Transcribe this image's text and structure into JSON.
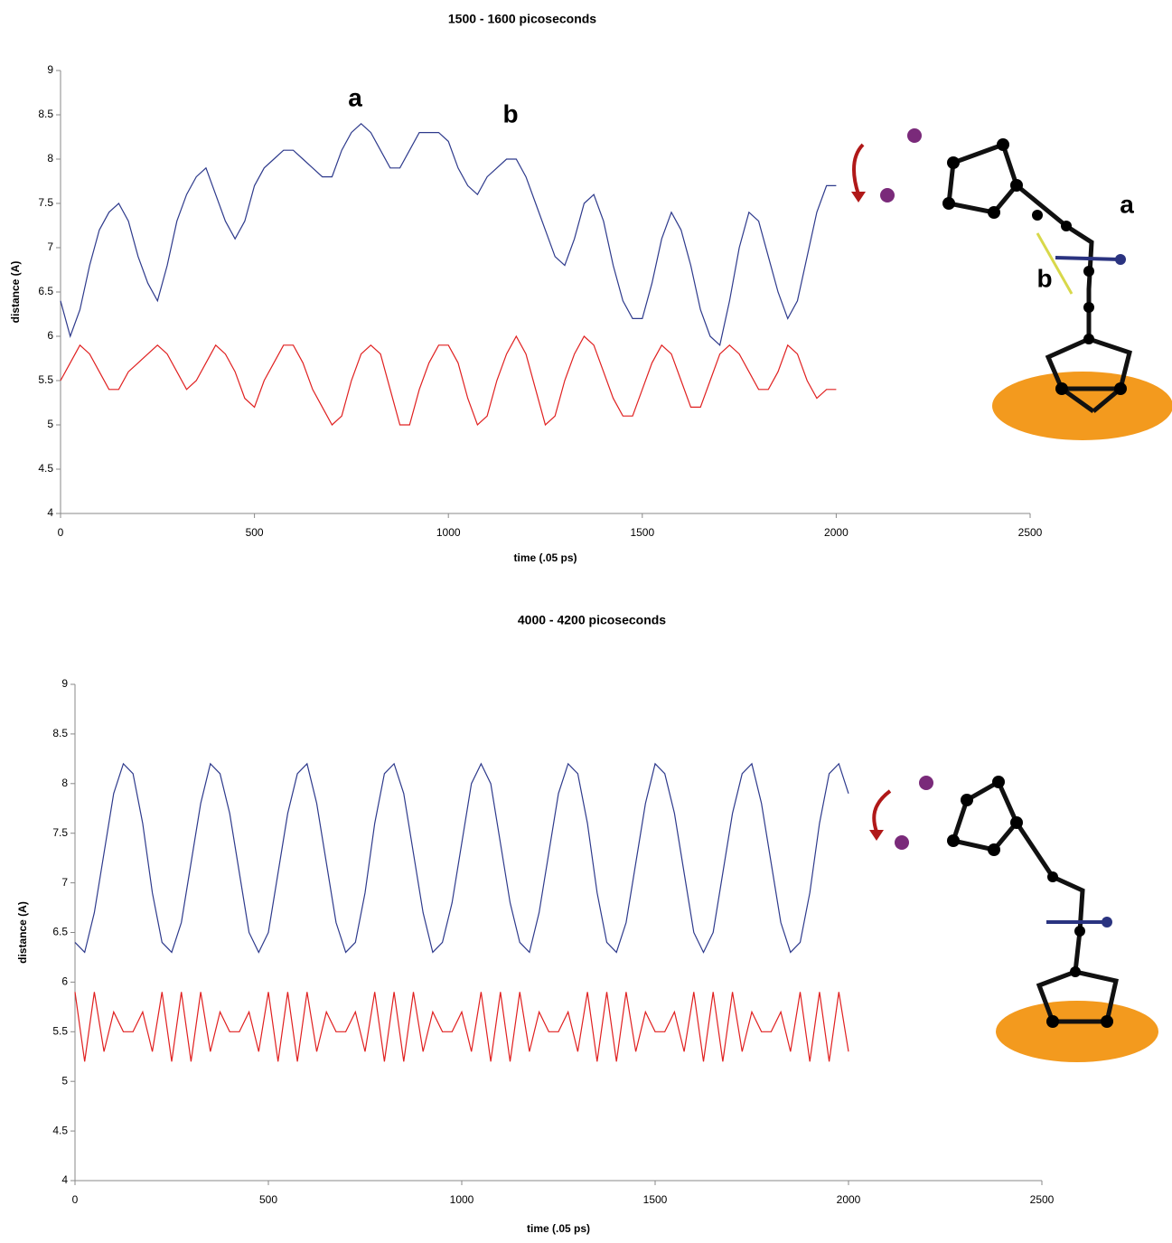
{
  "chart_data": [
    {
      "type": "line",
      "title": "1500 -  1600 picoseconds",
      "x_label": "time (.05 ps)",
      "y_label": "distance (A)",
      "xlim": [
        0,
        2500
      ],
      "xticks": [
        0,
        500,
        1000,
        1500,
        2000,
        2500
      ],
      "ylim": [
        4,
        9
      ],
      "yticks": [
        4,
        4.5,
        5,
        5.5,
        6,
        6.5,
        7,
        7.5,
        8,
        8.5,
        9
      ],
      "annotations": [
        "a",
        "b",
        "a",
        "b"
      ],
      "x": [
        0,
        25,
        50,
        75,
        100,
        125,
        150,
        175,
        200,
        225,
        250,
        275,
        300,
        325,
        350,
        375,
        400,
        425,
        450,
        475,
        500,
        525,
        550,
        575,
        600,
        625,
        650,
        675,
        700,
        725,
        750,
        775,
        800,
        825,
        850,
        875,
        900,
        925,
        950,
        975,
        1000,
        1025,
        1050,
        1075,
        1100,
        1125,
        1150,
        1175,
        1200,
        1225,
        1250,
        1275,
        1300,
        1325,
        1350,
        1375,
        1400,
        1425,
        1450,
        1475,
        1500,
        1525,
        1550,
        1575,
        1600,
        1625,
        1650,
        1675,
        1700,
        1725,
        1750,
        1775,
        1800,
        1825,
        1850,
        1875,
        1900,
        1925,
        1950,
        1975,
        2000
      ],
      "series": [
        {
          "color": "#2e3a8c",
          "values": [
            6.4,
            6.0,
            6.3,
            6.8,
            7.2,
            7.4,
            7.5,
            7.3,
            6.9,
            6.6,
            6.4,
            6.8,
            7.3,
            7.6,
            7.8,
            7.9,
            7.6,
            7.3,
            7.1,
            7.3,
            7.7,
            7.9,
            8.0,
            8.1,
            8.1,
            8.0,
            7.9,
            7.8,
            7.8,
            8.1,
            8.3,
            8.4,
            8.3,
            8.1,
            7.9,
            7.9,
            8.1,
            8.3,
            8.3,
            8.3,
            8.2,
            7.9,
            7.7,
            7.6,
            7.8,
            7.9,
            8.0,
            8.0,
            7.8,
            7.5,
            7.2,
            6.9,
            6.8,
            7.1,
            7.5,
            7.6,
            7.3,
            6.8,
            6.4,
            6.2,
            6.2,
            6.6,
            7.1,
            7.4,
            7.2,
            6.8,
            6.3,
            6.0,
            5.9,
            6.4,
            7.0,
            7.4,
            7.3,
            6.9,
            6.5,
            6.2,
            6.4,
            6.9,
            7.4,
            7.7,
            7.7
          ]
        },
        {
          "color": "#e02020",
          "values": [
            5.5,
            5.7,
            5.9,
            5.8,
            5.6,
            5.4,
            5.4,
            5.6,
            5.7,
            5.8,
            5.9,
            5.8,
            5.6,
            5.4,
            5.5,
            5.7,
            5.9,
            5.8,
            5.6,
            5.3,
            5.2,
            5.5,
            5.7,
            5.9,
            5.9,
            5.7,
            5.4,
            5.2,
            5.0,
            5.1,
            5.5,
            5.8,
            5.9,
            5.8,
            5.4,
            5.0,
            5.0,
            5.4,
            5.7,
            5.9,
            5.9,
            5.7,
            5.3,
            5.0,
            5.1,
            5.5,
            5.8,
            6.0,
            5.8,
            5.4,
            5.0,
            5.1,
            5.5,
            5.8,
            6.0,
            5.9,
            5.6,
            5.3,
            5.1,
            5.1,
            5.4,
            5.7,
            5.9,
            5.8,
            5.5,
            5.2,
            5.2,
            5.5,
            5.8,
            5.9,
            5.8,
            5.6,
            5.4,
            5.4,
            5.6,
            5.9,
            5.8,
            5.5,
            5.3,
            5.4,
            5.4
          ]
        }
      ]
    },
    {
      "type": "line",
      "title": "4000 -  4200 picoseconds",
      "x_label": "time (.05 ps)",
      "y_label": "distance (A)",
      "xlim": [
        0,
        2500
      ],
      "xticks": [
        0,
        500,
        1000,
        1500,
        2000,
        2500
      ],
      "ylim": [
        4,
        9
      ],
      "yticks": [
        4,
        4.5,
        5,
        5.5,
        6,
        6.5,
        7,
        7.5,
        8,
        8.5,
        9
      ],
      "x": [
        0,
        25,
        50,
        75,
        100,
        125,
        150,
        175,
        200,
        225,
        250,
        275,
        300,
        325,
        350,
        375,
        400,
        425,
        450,
        475,
        500,
        525,
        550,
        575,
        600,
        625,
        650,
        675,
        700,
        725,
        750,
        775,
        800,
        825,
        850,
        875,
        900,
        925,
        950,
        975,
        1000,
        1025,
        1050,
        1075,
        1100,
        1125,
        1150,
        1175,
        1200,
        1225,
        1250,
        1275,
        1300,
        1325,
        1350,
        1375,
        1400,
        1425,
        1450,
        1475,
        1500,
        1525,
        1550,
        1575,
        1600,
        1625,
        1650,
        1675,
        1700,
        1725,
        1750,
        1775,
        1800,
        1825,
        1850,
        1875,
        1900,
        1925,
        1950,
        1975,
        2000
      ],
      "series": [
        {
          "color": "#2e3a8c",
          "values": [
            6.4,
            6.3,
            6.7,
            7.3,
            7.9,
            8.2,
            8.1,
            7.6,
            6.9,
            6.4,
            6.3,
            6.6,
            7.2,
            7.8,
            8.2,
            8.1,
            7.7,
            7.1,
            6.5,
            6.3,
            6.5,
            7.1,
            7.7,
            8.1,
            8.2,
            7.8,
            7.2,
            6.6,
            6.3,
            6.4,
            6.9,
            7.6,
            8.1,
            8.2,
            7.9,
            7.3,
            6.7,
            6.3,
            6.4,
            6.8,
            7.4,
            8.0,
            8.2,
            8.0,
            7.4,
            6.8,
            6.4,
            6.3,
            6.7,
            7.3,
            7.9,
            8.2,
            8.1,
            7.6,
            6.9,
            6.4,
            6.3,
            6.6,
            7.2,
            7.8,
            8.2,
            8.1,
            7.7,
            7.1,
            6.5,
            6.3,
            6.5,
            7.1,
            7.7,
            8.1,
            8.2,
            7.8,
            7.2,
            6.6,
            6.3,
            6.4,
            6.9,
            7.6,
            8.1,
            8.2,
            7.9
          ]
        },
        {
          "color": "#e02020",
          "values": [
            5.9,
            5.2,
            5.9,
            5.3,
            5.7,
            5.5,
            5.5,
            5.7,
            5.3,
            5.9,
            5.2,
            5.9,
            5.2,
            5.9,
            5.3,
            5.7,
            5.5,
            5.5,
            5.7,
            5.3,
            5.9,
            5.2,
            5.9,
            5.2,
            5.9,
            5.3,
            5.7,
            5.5,
            5.5,
            5.7,
            5.3,
            5.9,
            5.2,
            5.9,
            5.2,
            5.9,
            5.3,
            5.7,
            5.5,
            5.5,
            5.7,
            5.3,
            5.9,
            5.2,
            5.9,
            5.2,
            5.9,
            5.3,
            5.7,
            5.5,
            5.5,
            5.7,
            5.3,
            5.9,
            5.2,
            5.9,
            5.2,
            5.9,
            5.3,
            5.7,
            5.5,
            5.5,
            5.7,
            5.3,
            5.9,
            5.2,
            5.9,
            5.2,
            5.9,
            5.3,
            5.7,
            5.5,
            5.5,
            5.7,
            5.3,
            5.9,
            5.2,
            5.9,
            5.2,
            5.9,
            5.3
          ]
        }
      ]
    }
  ]
}
